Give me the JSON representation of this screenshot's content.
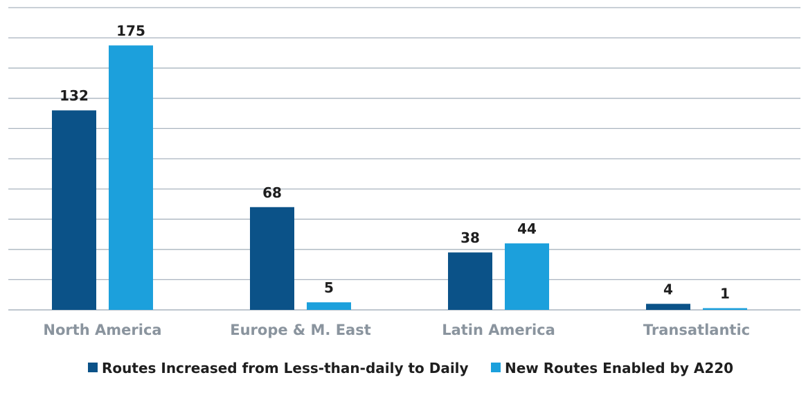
{
  "chart_data": {
    "type": "bar",
    "categories": [
      "North America",
      "Europe & M. East",
      "Latin America",
      "Transatlantic"
    ],
    "series": [
      {
        "name": "Routes Increased from Less-than-daily to Daily",
        "values": [
          132,
          68,
          38,
          4
        ],
        "color": "#0b5288"
      },
      {
        "name": "New Routes Enabled by A220",
        "values": [
          175,
          5,
          44,
          1
        ],
        "color": "#1ca0dc"
      }
    ],
    "ylim": [
      0,
      200
    ],
    "grid": true,
    "legend_position": "bottom"
  }
}
